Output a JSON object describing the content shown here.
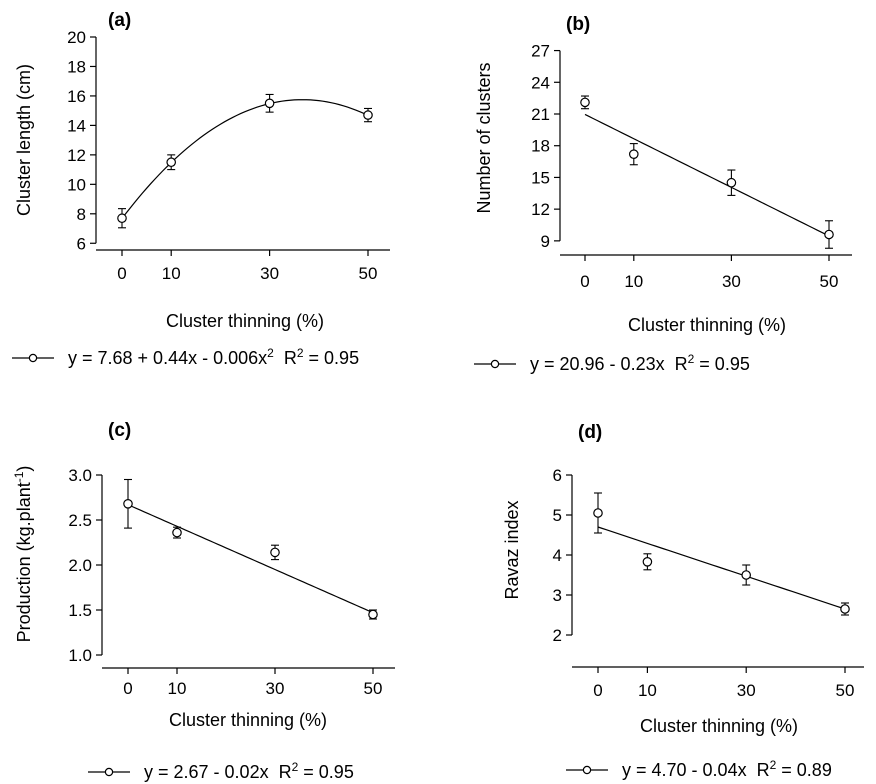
{
  "chart_data": [
    {
      "panel": "(a)",
      "type": "scatter",
      "x": [
        0,
        10,
        30,
        50
      ],
      "x_tick_labels": [
        "0",
        "10",
        "30",
        "50"
      ],
      "values": [
        7.7,
        11.5,
        15.5,
        14.7
      ],
      "errors": [
        0.65,
        0.5,
        0.6,
        0.45
      ],
      "xlabel": "Cluster thinning (%)",
      "ylabel": "Cluster length (cm)",
      "ylim": [
        5,
        20
      ],
      "yticks": [
        6,
        8,
        10,
        12,
        14,
        16,
        18,
        20
      ],
      "fit": {
        "kind": "quadratic",
        "coef": [
          7.68,
          0.44,
          -0.006
        ]
      },
      "legend": {
        "equation": "y = 7.68 + 0.44x - 0.006x",
        "exponent": "2",
        "r2_prefix": "R",
        "r2_exp": "2",
        "r2_value": " = 0.95"
      }
    },
    {
      "panel": "(b)",
      "type": "scatter",
      "x": [
        0,
        10,
        30,
        50
      ],
      "x_tick_labels": [
        "0",
        "10",
        "30",
        "50"
      ],
      "values": [
        22.1,
        17.2,
        14.5,
        9.6
      ],
      "errors": [
        0.6,
        1.0,
        1.2,
        1.3
      ],
      "xlabel": "Cluster thinning (%)",
      "ylabel": "Number of clusters",
      "ylim": [
        7,
        28
      ],
      "yticks": [
        9,
        12,
        15,
        18,
        21,
        24,
        27
      ],
      "fit": {
        "kind": "linear",
        "coef": [
          20.96,
          -0.23
        ]
      },
      "legend": {
        "equation": "y = 20.96 - 0.23x",
        "exponent": "",
        "r2_prefix": "R",
        "r2_exp": "2",
        "r2_value": " = 0.95"
      }
    },
    {
      "panel": "(c)",
      "type": "scatter",
      "x": [
        0,
        10,
        30,
        50
      ],
      "x_tick_labels": [
        "0",
        "10",
        "30",
        "50"
      ],
      "values": [
        2.68,
        2.36,
        2.14,
        1.45
      ],
      "errors": [
        0.27,
        0.06,
        0.08,
        0.05
      ],
      "xlabel": "Cluster thinning (%)",
      "ylabel": "Production (kg.plant",
      "ylabel_sup": "-1",
      "ylabel_suffix": ")",
      "ylim": [
        1.0,
        3.3
      ],
      "yticks": [
        1.0,
        1.5,
        2.0,
        2.5,
        3.0
      ],
      "ytick_labels": [
        "1.0",
        "1.5",
        "2.0",
        "2.5",
        "3.0"
      ],
      "fit": {
        "kind": "linear",
        "coef": [
          2.67,
          -0.024
        ]
      },
      "legend": {
        "equation": "y = 2.67 - 0.02x",
        "exponent": "",
        "r2_prefix": "R",
        "r2_exp": "2",
        "r2_value": " = 0.95"
      }
    },
    {
      "panel": "(d)",
      "type": "scatter",
      "x": [
        0,
        10,
        30,
        50
      ],
      "x_tick_labels": [
        "0",
        "10",
        "30",
        "50"
      ],
      "values": [
        5.05,
        3.83,
        3.5,
        2.65
      ],
      "errors": [
        0.5,
        0.2,
        0.25,
        0.15
      ],
      "xlabel": "Cluster thinning (%)",
      "ylabel": "Ravaz index",
      "ylim": [
        1.5,
        6.5
      ],
      "yticks": [
        2,
        3,
        4,
        5,
        6
      ],
      "fit": {
        "kind": "linear",
        "coef": [
          4.7,
          -0.041
        ]
      },
      "legend": {
        "equation": "y = 4.70 - 0.04x",
        "exponent": "",
        "r2_prefix": "R",
        "r2_exp": "2",
        "r2_value": " = 0.89"
      }
    }
  ]
}
